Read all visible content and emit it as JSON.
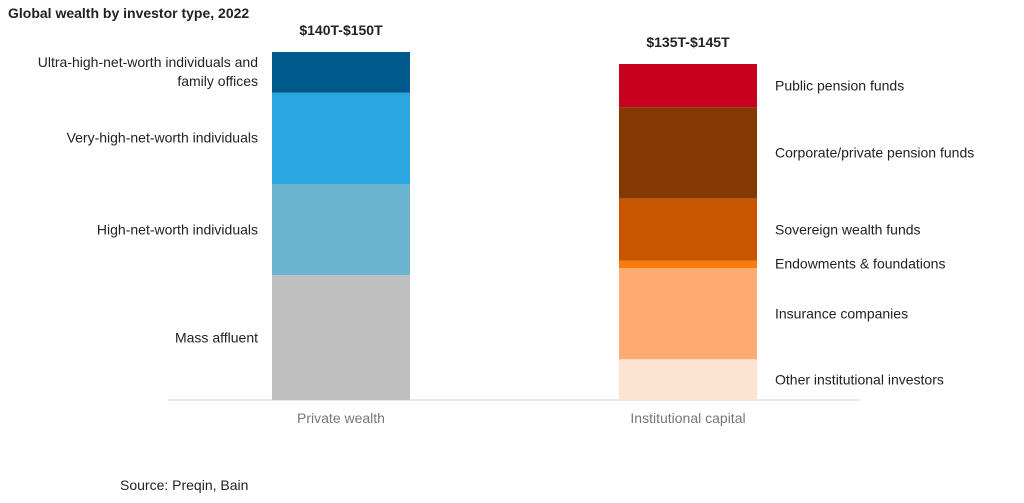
{
  "chart_data": {
    "type": "stacked_bar",
    "title": "Global wealth by investor type, 2022",
    "categories": [
      "Private wealth",
      "Institutional capital"
    ],
    "total_labels": [
      "$140T-$150T",
      "$135T-$145T"
    ],
    "series": [
      {
        "name": "Mass affluent",
        "color": "#bfbfbf",
        "values": [
          52,
          null
        ]
      },
      {
        "name": "High-net-worth individuals",
        "color": "#6bb4d0",
        "values": [
          38,
          null
        ]
      },
      {
        "name": "Very-high-net-worth individuals",
        "color": "#29a8e0",
        "values": [
          38,
          null
        ]
      },
      {
        "name": "Ultra-high-net-worth individuals and family offices",
        "color": "#005a8c",
        "values": [
          17,
          null
        ]
      },
      {
        "name": "Other institutional investors",
        "color": "#fde3d1",
        "values": [
          null,
          17
        ]
      },
      {
        "name": "Insurance companies",
        "color": "#ffaa6e",
        "values": [
          null,
          38
        ]
      },
      {
        "name": "Endowments & foundations",
        "color": "#f97b0e",
        "values": [
          null,
          3
        ]
      },
      {
        "name": "Sovereign wealth funds",
        "color": "#c85500",
        "values": [
          null,
          26
        ]
      },
      {
        "name": "Corporate/private pension funds",
        "color": "#853800",
        "values": [
          null,
          38
        ]
      },
      {
        "name": "Public pension funds",
        "color": "#c8001e",
        "values": [
          null,
          18
        ]
      }
    ],
    "source": "Source: Preqin, Bain"
  }
}
